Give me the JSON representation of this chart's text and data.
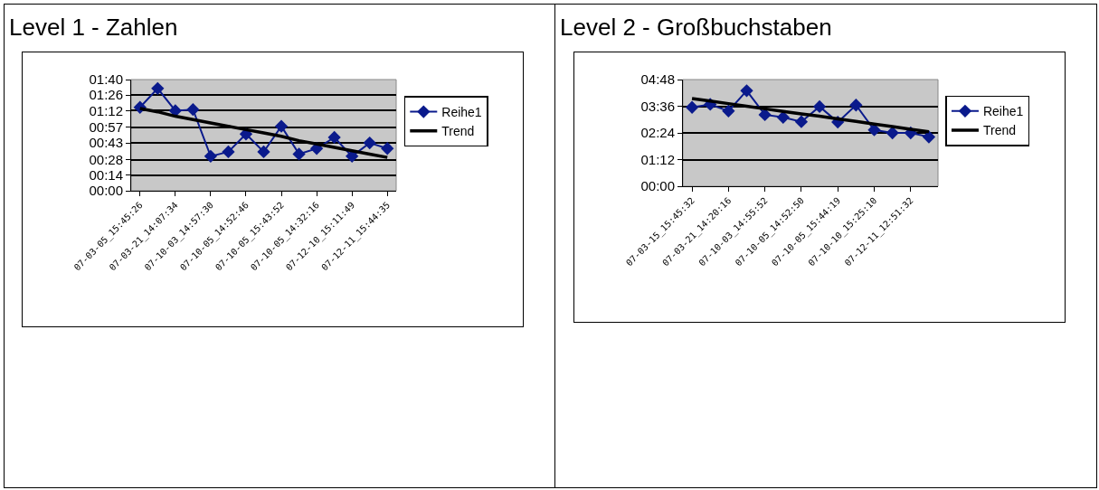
{
  "chart_data": [
    {
      "type": "line",
      "title": "Level 1 - Zahlen",
      "categories": [
        "07-03-05_15:45:26",
        null,
        "07-03-21_14:07:34",
        null,
        "07-10-03_14:57:30",
        null,
        "07-10-05_14:52:46",
        null,
        "07-10-05_15:43:52",
        null,
        "07-10-05_14:32:16",
        null,
        "07-12-10_15:11:49",
        null,
        "07-12-11_15:44:35"
      ],
      "series": [
        {
          "name": "Reihe1",
          "color": "#0a1a8c",
          "marker": "diamond",
          "values": [
            75,
            92,
            72,
            73,
            31,
            35,
            51,
            35,
            58,
            33,
            38,
            48,
            31,
            43,
            38
          ]
        },
        {
          "name": "Trend",
          "type": "line",
          "color": "#000000",
          "marker": "none",
          "values": [
            74,
            71,
            67,
            64,
            61,
            58,
            55,
            52,
            49,
            45,
            42,
            39,
            36,
            33,
            30
          ]
        }
      ],
      "ylim": [
        0,
        100
      ],
      "yticks": [
        {
          "value": 0,
          "label": "00:00"
        },
        {
          "value": 14,
          "label": "00:14"
        },
        {
          "value": 28,
          "label": "00:28"
        },
        {
          "value": 43,
          "label": "00:43"
        },
        {
          "value": 57,
          "label": "00:57"
        },
        {
          "value": 72,
          "label": "01:12"
        },
        {
          "value": 86,
          "label": "01:26"
        },
        {
          "value": 100,
          "label": "01:40"
        }
      ],
      "grid": "y",
      "legend": "right",
      "line_style": "solid"
    },
    {
      "type": "line",
      "title": "Level 2 - Großbuchstaben",
      "categories": [
        "07-03-15_15:45:32",
        null,
        "07-03-21_14:20:16",
        null,
        "07-10-03_14:55:52",
        null,
        "07-10-05_14:52:50",
        null,
        "07-10-05_15:44:19",
        null,
        "07-10-10_15:25:10",
        null,
        "07-12-11_12:51:32",
        null
      ],
      "series": [
        {
          "name": "Reihe1",
          "color": "#0a1a8c",
          "marker": "diamond",
          "values": [
            213,
            221,
            203,
            258,
            193,
            186,
            174,
            215,
            173,
            219,
            152,
            144,
            144,
            133
          ]
        },
        {
          "name": "Trend",
          "type": "line",
          "color": "#000000",
          "marker": "none",
          "values": [
            237,
            230,
            223,
            216,
            209,
            202,
            195,
            189,
            182,
            175,
            168,
            161,
            154,
            147
          ]
        }
      ],
      "ylim": [
        0,
        288
      ],
      "yticks": [
        {
          "value": 0,
          "label": "00:00"
        },
        {
          "value": 72,
          "label": "01:12"
        },
        {
          "value": 144,
          "label": "02:24"
        },
        {
          "value": 216,
          "label": "03:36"
        },
        {
          "value": 288,
          "label": "04:48"
        }
      ],
      "grid": "y",
      "legend": "right",
      "line_style": "solid"
    }
  ]
}
